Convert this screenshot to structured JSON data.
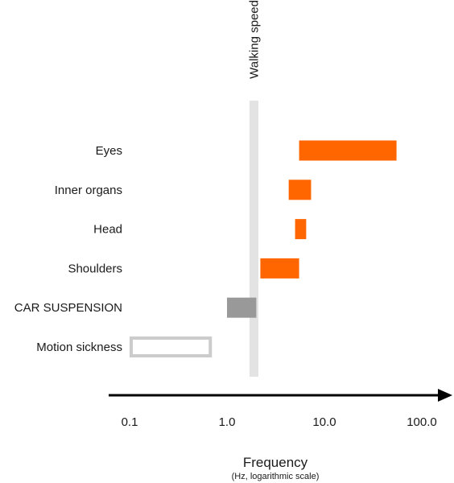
{
  "chart_data": {
    "type": "bar",
    "orientation": "horizontal-range",
    "xscale": "log",
    "xlim": [
      0.1,
      100
    ],
    "xticks": [
      "0.1",
      "1.0",
      "10.0",
      "100.0"
    ],
    "xlabel": "Frequency",
    "xlabel_sub": "(Hz, logarithmic scale)",
    "reference_band": {
      "label": "Walking speed",
      "range": [
        1.7,
        2.1
      ],
      "color": "#e3e3e3"
    },
    "categories": [
      "Eyes",
      "Inner organs",
      "Head",
      "Shoulders",
      "CAR SUSPENSION",
      "Motion sickness"
    ],
    "ranges": [
      {
        "category": "Eyes",
        "low": 5.5,
        "high": 55,
        "color": "#ff6600",
        "style": "filled"
      },
      {
        "category": "Inner organs",
        "low": 4.3,
        "high": 7.3,
        "color": "#ff6600",
        "style": "filled"
      },
      {
        "category": "Head",
        "low": 5.0,
        "high": 6.5,
        "color": "#ff6600",
        "style": "filled"
      },
      {
        "category": "Shoulders",
        "low": 2.2,
        "high": 5.5,
        "color": "#ff6600",
        "style": "filled"
      },
      {
        "category": "CAR SUSPENSION",
        "low": 1.0,
        "high": 2.0,
        "color": "#999999",
        "style": "filled"
      },
      {
        "category": "Motion sickness",
        "low": 0.1,
        "high": 0.7,
        "color": "#cccccc",
        "style": "outline"
      }
    ],
    "grid": false,
    "legend": "none"
  }
}
